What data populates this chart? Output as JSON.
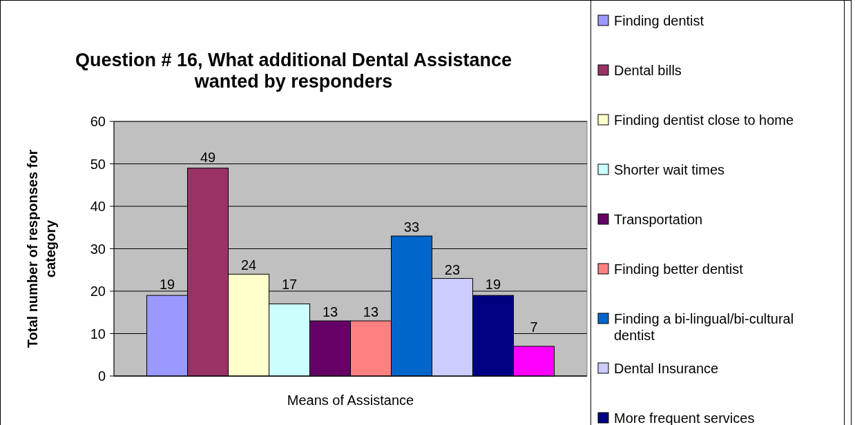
{
  "chart_data": {
    "type": "bar",
    "title": "Question # 16, What additional Dental Assistance wanted by responders",
    "xlabel": "Means of Assistance",
    "ylabel": "Total number of responses for category",
    "categories": [
      null
    ],
    "series": [
      {
        "name": "Finding dentist",
        "color": "#9999ff",
        "values": [
          19
        ]
      },
      {
        "name": "Dental bills",
        "color": "#993366",
        "values": [
          49
        ]
      },
      {
        "name": "Finding dentist close to home",
        "color": "#ffffcc",
        "values": [
          24
        ]
      },
      {
        "name": "Shorter wait times",
        "color": "#ccffff",
        "values": [
          17
        ]
      },
      {
        "name": "Transportation",
        "color": "#660066",
        "values": [
          13
        ]
      },
      {
        "name": "Finding better dentist",
        "color": "#ff8080",
        "values": [
          13
        ]
      },
      {
        "name": "Finding a bi-lingual/bi-cultural dentist",
        "color": "#0066cc",
        "values": [
          33
        ]
      },
      {
        "name": "Dental Insurance",
        "color": "#ccccff",
        "values": [
          23
        ]
      },
      {
        "name": "More frequent services",
        "color": "#000080",
        "values": [
          19
        ]
      },
      {
        "color": "#ff00ff",
        "values": [
          7
        ]
      }
    ],
    "ylim": [
      0,
      60
    ],
    "yticks": [
      0,
      10,
      20,
      30,
      40,
      50,
      60
    ],
    "grid": "y",
    "legend": "right",
    "data_labels": true
  }
}
